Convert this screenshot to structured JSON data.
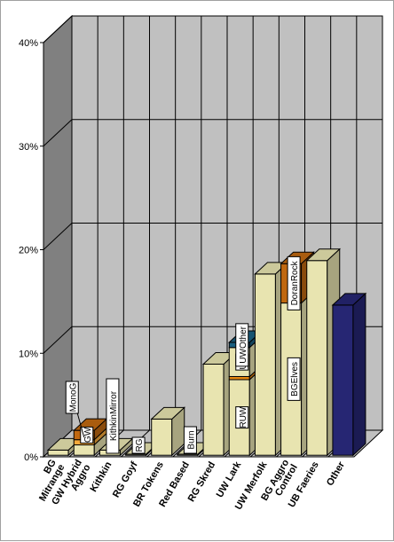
{
  "chart_data": {
    "type": "bar",
    "stacked": true,
    "three_d": true,
    "categories": [
      "BG Mitrange",
      "GW Hybrid Aggro",
      "Kithkin",
      "RG Goyf",
      "BR Tokens",
      "Red Based",
      "RG Skred",
      "UW Lark",
      "UW Merfolk",
      "BG Aggro Control",
      "UB Faeries",
      "Other"
    ],
    "segments": [
      [
        {
          "value": 0.5,
          "color": "#e8e4b0"
        }
      ],
      [
        {
          "value": 1.0,
          "color": "#e8e4b0"
        },
        {
          "value": 0.5,
          "color": "#f5a93a"
        },
        {
          "value": 0.9,
          "color": "#c06810",
          "label": "GW"
        }
      ],
      [
        {
          "value": 0.5,
          "color": "#e8e4b0",
          "label": "KithkinMirror"
        }
      ],
      [
        {
          "value": 0.1,
          "color": "#e8e4b0",
          "label": "RG"
        }
      ],
      [
        {
          "value": 3.5,
          "color": "#e8e4b0"
        }
      ],
      [
        {
          "value": 0.1,
          "color": "#e8e4b0",
          "label": "Burn"
        }
      ],
      [
        {
          "value": 8.8,
          "color": "#e8e4b0"
        }
      ],
      [
        {
          "value": 7.3,
          "color": "#e8e4b0",
          "label": "RUW"
        },
        {
          "value": 0.3,
          "color": "#e8870f"
        },
        {
          "value": 2.8,
          "color": "#e8e4b0",
          "label": "UW"
        },
        {
          "value": 0.5,
          "color": "#1a5f80",
          "label": "UWOther"
        }
      ],
      [
        {
          "value": 17.5,
          "color": "#e8e4b0"
        }
      ],
      [
        {
          "value": 14.7,
          "color": "#e8e4b0",
          "label": "BGElves"
        },
        {
          "value": 3.8,
          "color": "#c06810",
          "label": "DoranRock"
        }
      ],
      [
        {
          "value": 18.8,
          "color": "#e8e4b0"
        }
      ],
      [
        {
          "value": 14.5,
          "color": "#262673"
        }
      ]
    ],
    "extra_labels": [
      {
        "text": "MonoG",
        "category_index": 1
      }
    ],
    "ylim": [
      0,
      40
    ],
    "yticks": [
      "0%",
      "10%",
      "20%",
      "30%",
      "40%"
    ],
    "grid": true,
    "legend": "none"
  }
}
